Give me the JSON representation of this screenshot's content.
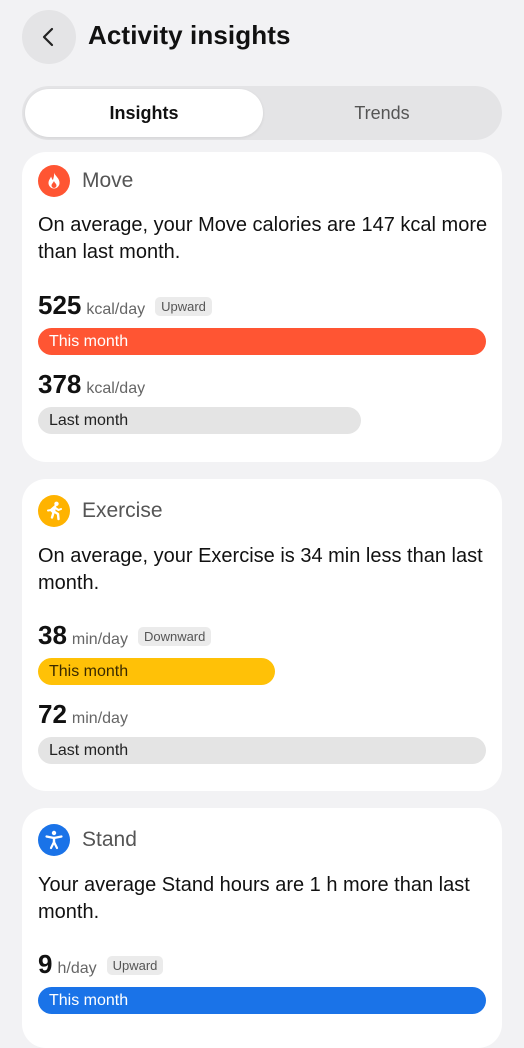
{
  "header": {
    "title": "Activity insights",
    "back_icon": "chevron-left-icon"
  },
  "tabs": [
    {
      "label": "Insights",
      "selected": true
    },
    {
      "label": "Trends",
      "selected": false
    }
  ],
  "cards": [
    {
      "name": "Move",
      "icon": "flame-icon",
      "accent": "#ff5533",
      "summary": "On average, your Move calories are 147 kcal more than last month.",
      "this_month": {
        "value": "525",
        "unit": "kcal/day",
        "badge": "Upward",
        "label": "This month",
        "fraction": 1.0
      },
      "last_month": {
        "value": "378",
        "unit": "kcal/day",
        "label": "Last month",
        "fraction": 0.72
      }
    },
    {
      "name": "Exercise",
      "icon": "running-icon",
      "accent": "#ffc107",
      "summary": "On average, your Exercise is 34 min less than last month.",
      "this_month": {
        "value": "38",
        "unit": "min/day",
        "badge": "Downward",
        "label": "This month",
        "fraction": 0.53
      },
      "last_month": {
        "value": "72",
        "unit": "min/day",
        "label": "Last month",
        "fraction": 1.0
      }
    },
    {
      "name": "Stand",
      "icon": "accessibility-icon",
      "accent": "#1a73e8",
      "summary": "Your average Stand hours are 1 h more than last month.",
      "this_month": {
        "value": "9",
        "unit": "h/day",
        "badge": "Upward",
        "label": "This month",
        "fraction": 1.0
      }
    }
  ]
}
